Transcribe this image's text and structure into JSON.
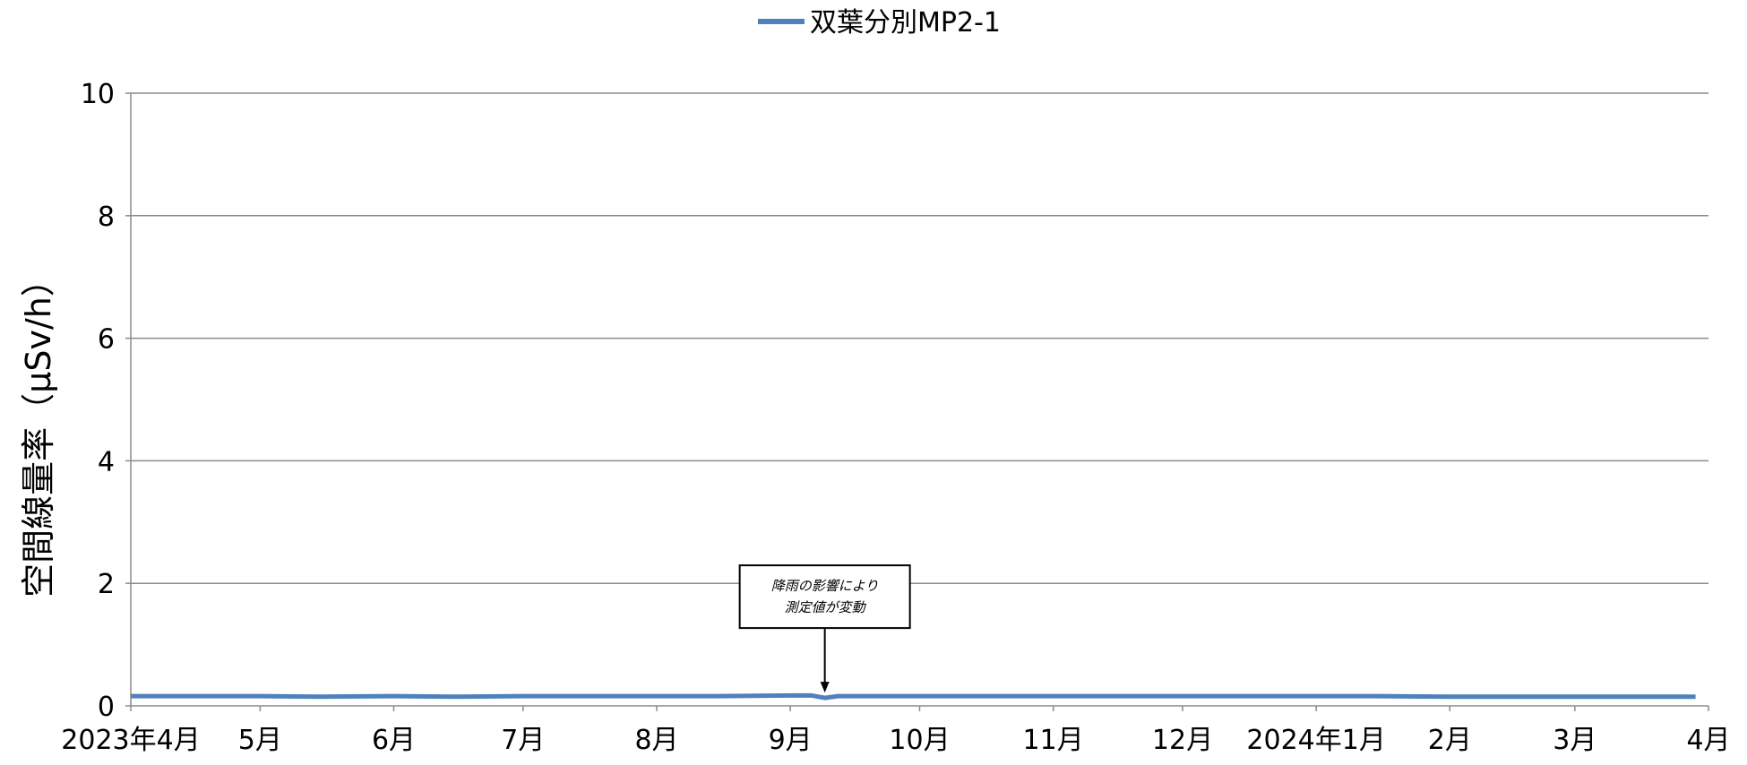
{
  "chart_data": {
    "type": "line",
    "title": "",
    "xlabel": "",
    "ylabel": "空間線量率（μSv/h）",
    "ylim": [
      0,
      10
    ],
    "yticks": [
      "0",
      "2",
      "4",
      "6",
      "8",
      "10"
    ],
    "grid": true,
    "legend": "top-center",
    "x_range": [
      "2023-04-01",
      "2024-04-01"
    ],
    "xticks": [
      {
        "date": "2023-04-01",
        "label": "2023年4月"
      },
      {
        "date": "2023-05-01",
        "label": "5月"
      },
      {
        "date": "2023-06-01",
        "label": "6月"
      },
      {
        "date": "2023-07-01",
        "label": "7月"
      },
      {
        "date": "2023-08-01",
        "label": "8月"
      },
      {
        "date": "2023-09-01",
        "label": "9月"
      },
      {
        "date": "2023-10-01",
        "label": "10月"
      },
      {
        "date": "2023-11-01",
        "label": "11月"
      },
      {
        "date": "2023-12-01",
        "label": "12月"
      },
      {
        "date": "2024-01-01",
        "label": "2024年1月"
      },
      {
        "date": "2024-02-01",
        "label": "2月"
      },
      {
        "date": "2024-03-01",
        "label": "3月"
      },
      {
        "date": "2024-04-01",
        "label": "4月"
      }
    ],
    "series": [
      {
        "name": "双葉分別MP2-1",
        "color": "#4f81bd",
        "x": [
          "2023-04-01",
          "2023-04-15",
          "2023-05-01",
          "2023-05-15",
          "2023-06-01",
          "2023-06-15",
          "2023-07-01",
          "2023-07-15",
          "2023-08-01",
          "2023-08-15",
          "2023-09-01",
          "2023-09-06",
          "2023-09-09",
          "2023-09-12",
          "2023-10-01",
          "2023-10-15",
          "2023-11-01",
          "2023-11-15",
          "2023-12-01",
          "2023-12-15",
          "2024-01-01",
          "2024-01-15",
          "2024-02-01",
          "2024-02-15",
          "2024-03-01",
          "2024-03-15",
          "2024-03-29"
        ],
        "y": [
          0.16,
          0.16,
          0.16,
          0.15,
          0.16,
          0.15,
          0.16,
          0.16,
          0.16,
          0.16,
          0.17,
          0.17,
          0.13,
          0.16,
          0.16,
          0.16,
          0.16,
          0.16,
          0.16,
          0.16,
          0.16,
          0.16,
          0.15,
          0.15,
          0.15,
          0.15,
          0.15
        ]
      }
    ],
    "annotations": [
      {
        "lines": [
          "降雨の影響により",
          "測定値が変動"
        ],
        "points_to": {
          "x": "2023-09-09",
          "y": 0.13
        }
      }
    ]
  }
}
